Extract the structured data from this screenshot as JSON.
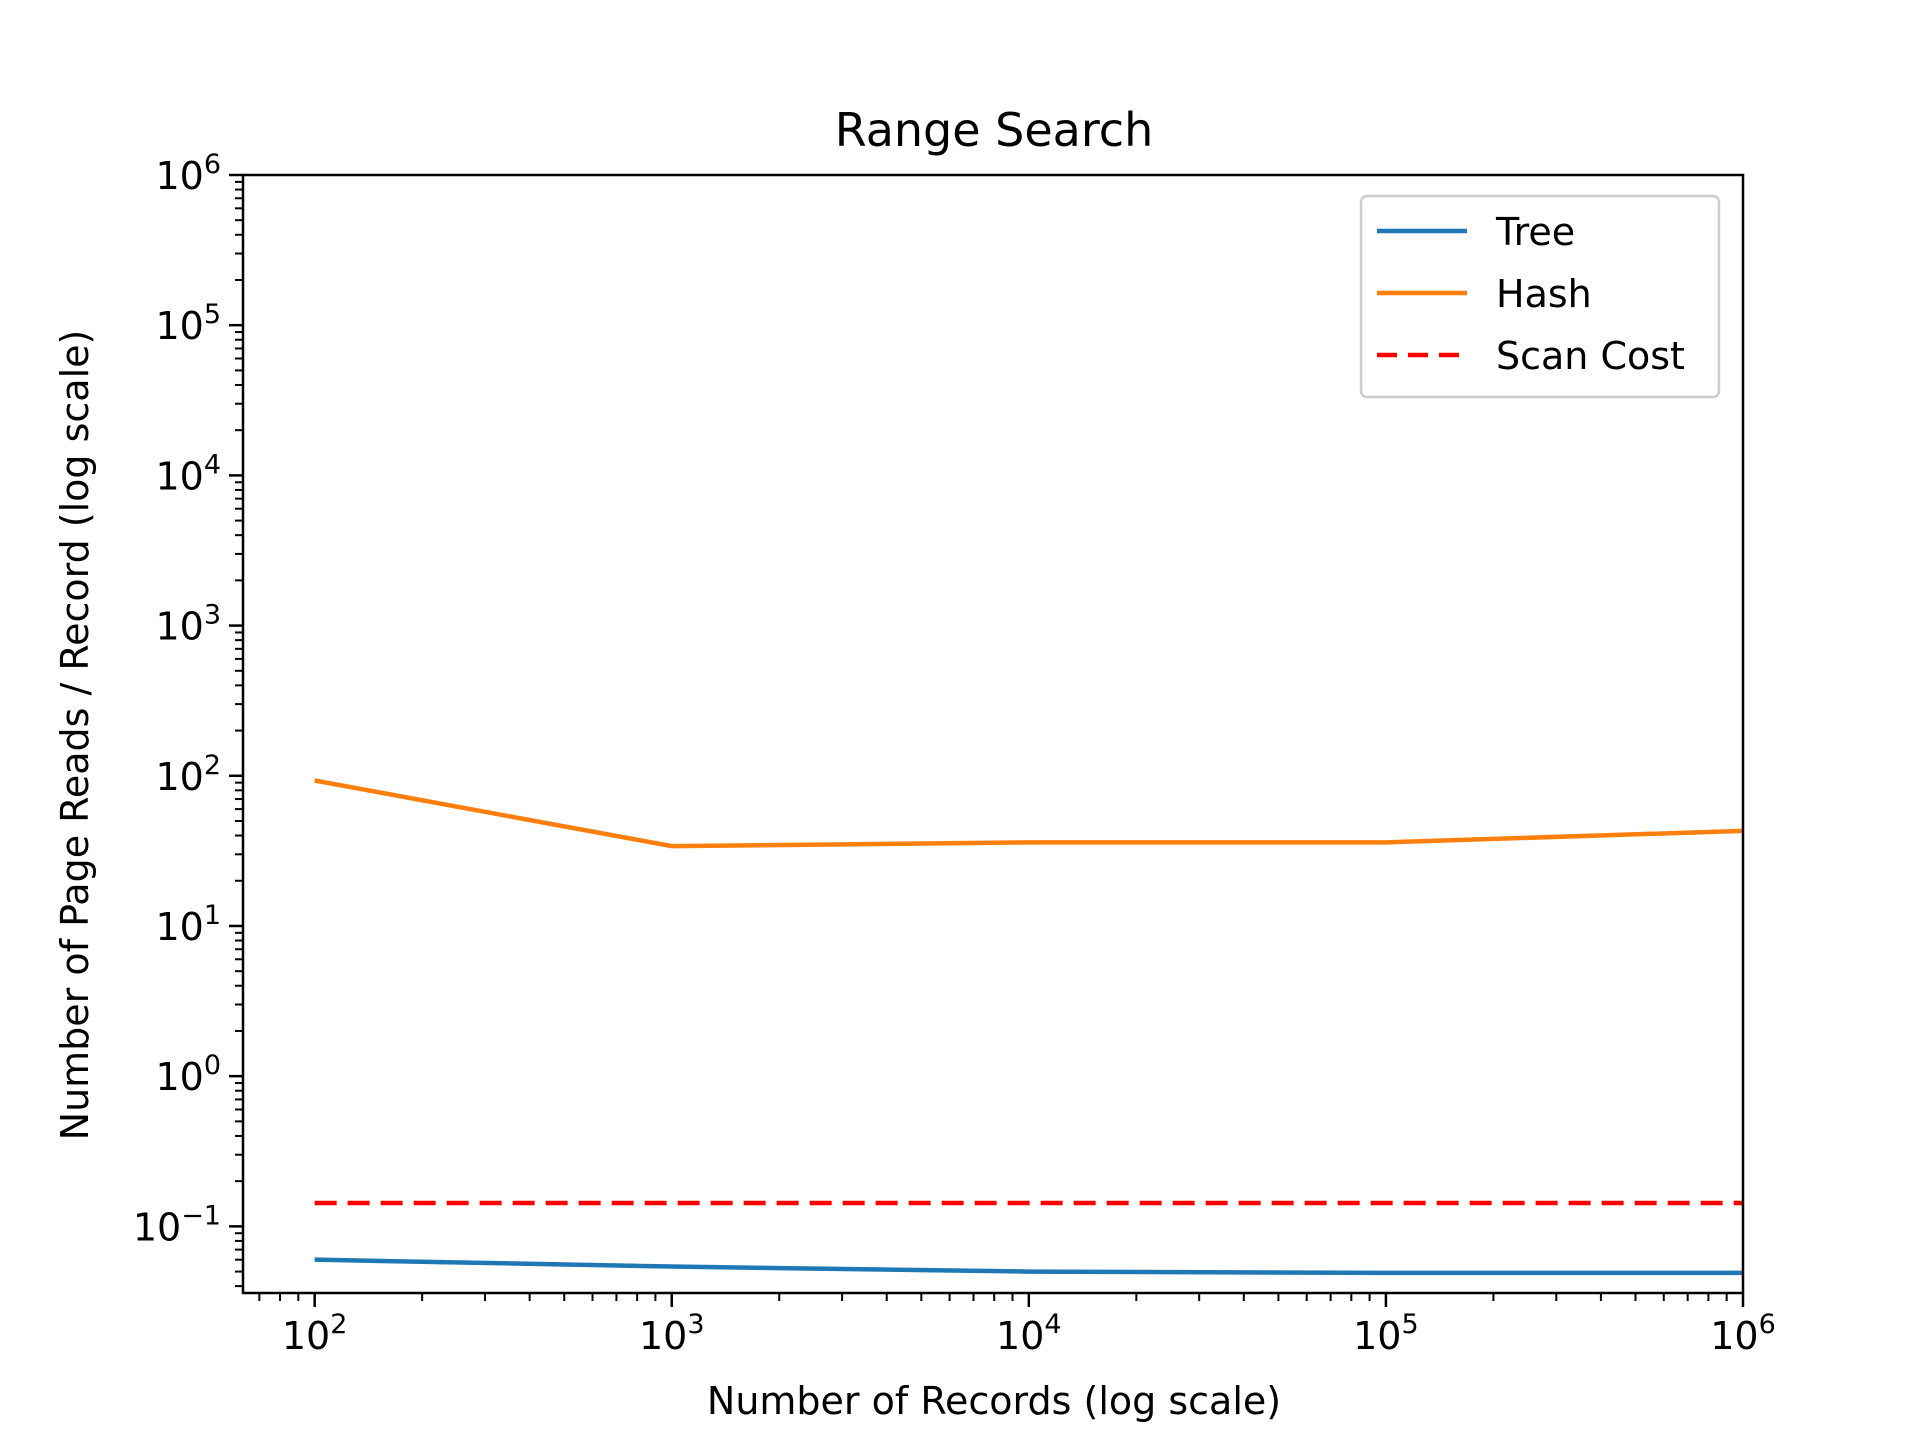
{
  "chart_data": {
    "type": "line",
    "title": "Range Search",
    "xlabel": "Number of Records (log scale)",
    "ylabel": "Number of Page Reads / Record (log scale)",
    "x_scale": "log",
    "y_scale": "log",
    "xlim": [
      63,
      1000000
    ],
    "ylim": [
      0.036,
      1000000
    ],
    "x_ticks": [
      {
        "value": 100,
        "base": "10",
        "exp": "2"
      },
      {
        "value": 1000,
        "base": "10",
        "exp": "3"
      },
      {
        "value": 10000,
        "base": "10",
        "exp": "4"
      },
      {
        "value": 100000,
        "base": "10",
        "exp": "5"
      },
      {
        "value": 1000000,
        "base": "10",
        "exp": "6"
      }
    ],
    "y_ticks": [
      {
        "value": 0.1,
        "base": "10",
        "exp": "−1"
      },
      {
        "value": 1,
        "base": "10",
        "exp": "0"
      },
      {
        "value": 10,
        "base": "10",
        "exp": "1"
      },
      {
        "value": 100,
        "base": "10",
        "exp": "2"
      },
      {
        "value": 1000,
        "base": "10",
        "exp": "3"
      },
      {
        "value": 10000,
        "base": "10",
        "exp": "4"
      },
      {
        "value": 100000,
        "base": "10",
        "exp": "5"
      },
      {
        "value": 1000000,
        "base": "10",
        "exp": "6"
      }
    ],
    "grid": false,
    "legend_position": "top-right",
    "x": [
      100,
      1000,
      10000,
      100000,
      1000000
    ],
    "series": [
      {
        "name": "Tree",
        "color": "#1f77b4",
        "style": "solid",
        "values": [
          0.06,
          0.054,
          0.05,
          0.049,
          0.049
        ]
      },
      {
        "name": "Hash",
        "color": "#ff7f0e",
        "style": "solid",
        "values": [
          93,
          34,
          36,
          36,
          43
        ]
      },
      {
        "name": "Scan Cost",
        "color": "#ff0000",
        "style": "dashed",
        "values": [
          0.143,
          0.143,
          0.143,
          0.143,
          0.143
        ]
      }
    ]
  }
}
